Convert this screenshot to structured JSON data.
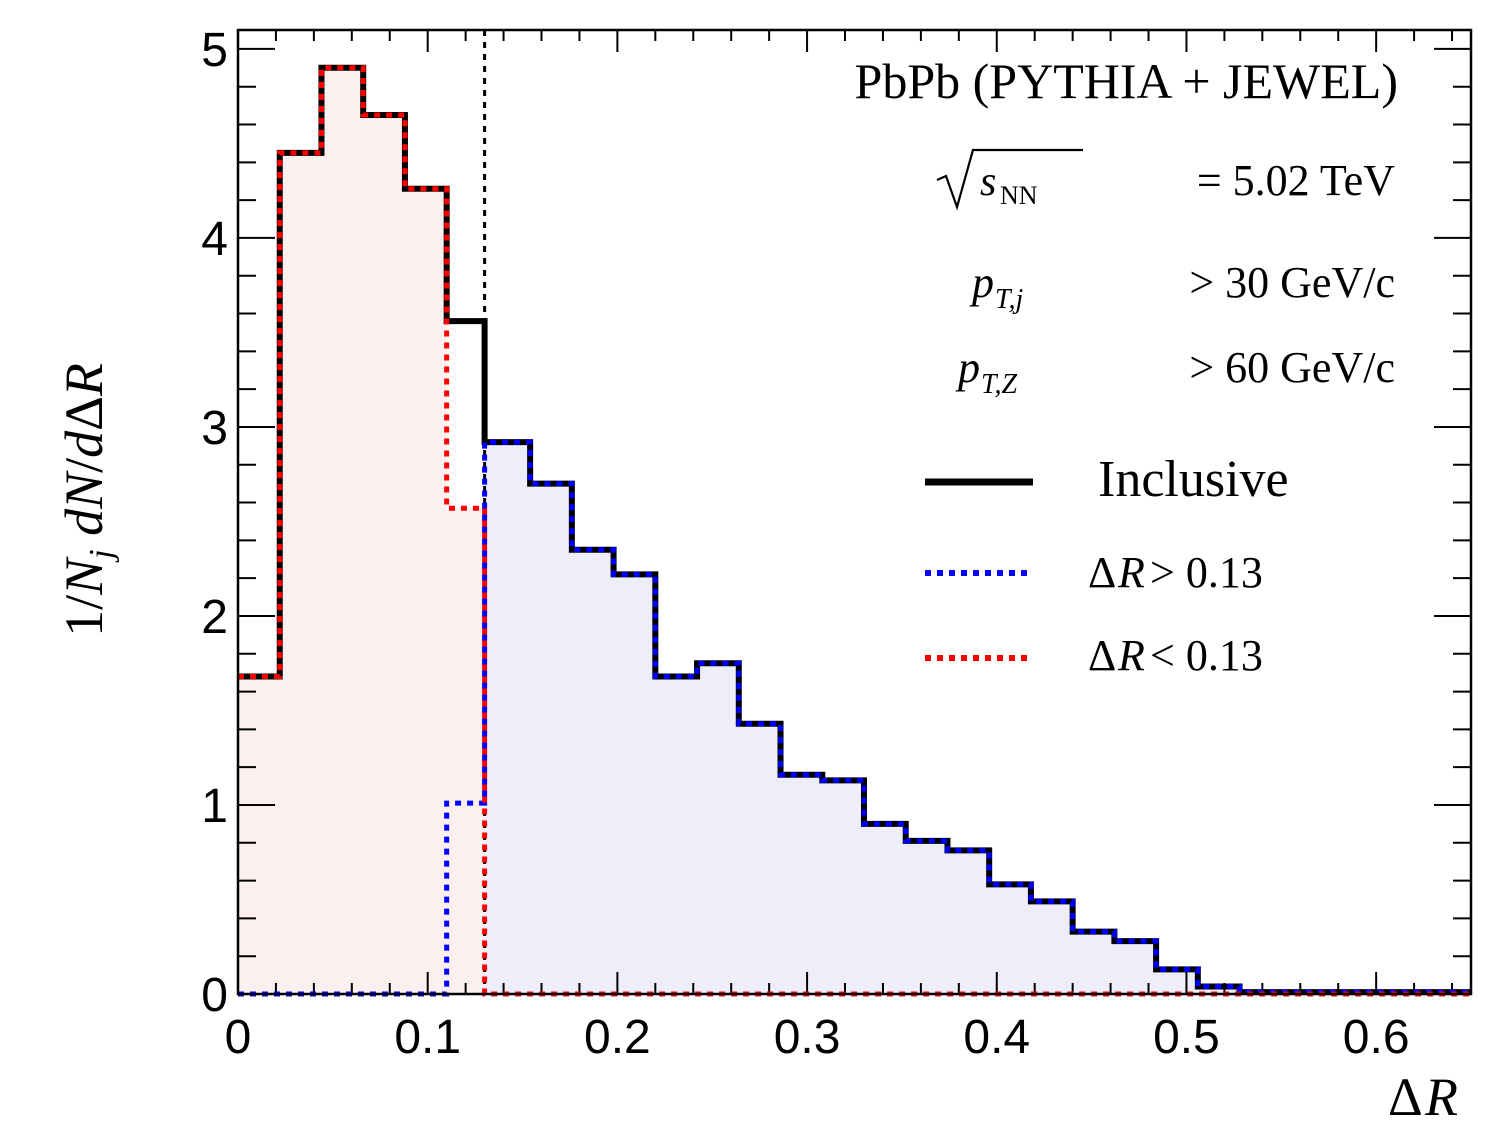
{
  "chart_data": {
    "type": "histogram",
    "title": "PbPb (PYTHIA + JEWEL)",
    "xlabel": "ΔR",
    "ylabel": "1/N_j dN/dΔR",
    "xlim": [
      0,
      0.65
    ],
    "ylim": [
      0,
      5.1
    ],
    "x_ticks": [
      "0",
      "0.1",
      "0.2",
      "0.3",
      "0.4",
      "0.5",
      "0.6"
    ],
    "y_ticks": [
      "0",
      "1",
      "2",
      "3",
      "4",
      "5"
    ],
    "cut_line_x": 0.13,
    "annotations": {
      "energy": "√s_NN = 5.02 TeV",
      "energy_value": "= 5.02 TeV",
      "jet_cut": "p_T,j > 30 GeV/c",
      "jet_cut_value": "> 30 GeV/c",
      "z_cut": "p_T,Z > 60 GeV/c",
      "z_cut_value": "> 60 GeV/c"
    },
    "bin_edges": [
      0,
      0.022,
      0.044,
      0.066,
      0.088,
      0.11,
      0.13,
      0.154,
      0.176,
      0.198,
      0.22,
      0.242,
      0.264,
      0.286,
      0.308,
      0.33,
      0.352,
      0.374,
      0.396,
      0.418,
      0.44,
      0.462,
      0.484,
      0.506,
      0.528,
      0.55,
      0.572,
      0.594,
      0.616,
      0.65
    ],
    "series": [
      {
        "name": "Inclusive",
        "color": "#000000",
        "style": "solid",
        "values": [
          1.68,
          4.45,
          4.9,
          4.65,
          4.26,
          3.56,
          2.92,
          2.7,
          2.35,
          2.22,
          1.68,
          1.75,
          1.43,
          1.16,
          1.13,
          0.9,
          0.81,
          0.76,
          0.58,
          0.49,
          0.33,
          0.28,
          0.13,
          0.04,
          0.01,
          0.01,
          0.01,
          0.01,
          0.01
        ]
      },
      {
        "name": "ΔR > 0.13",
        "legend_value": "> 0.13",
        "color": "#0000ff",
        "fill": "#eeeefb",
        "style": "dotted",
        "values": [
          0,
          0,
          0,
          0,
          0,
          1.01,
          2.92,
          2.7,
          2.35,
          2.22,
          1.68,
          1.75,
          1.43,
          1.16,
          1.13,
          0.9,
          0.81,
          0.76,
          0.58,
          0.49,
          0.33,
          0.28,
          0.13,
          0.04,
          0.01,
          0.01,
          0.01,
          0.01,
          0.01
        ]
      },
      {
        "name": "ΔR < 0.13",
        "legend_value": "< 0.13",
        "color": "#ff0000",
        "fill": "#fcefef",
        "style": "dotted",
        "values": [
          1.68,
          4.45,
          4.9,
          4.65,
          4.26,
          2.57,
          0,
          0,
          0,
          0,
          0,
          0,
          0,
          0,
          0,
          0,
          0,
          0,
          0,
          0,
          0,
          0,
          0,
          0,
          0,
          0,
          0,
          0,
          0
        ]
      }
    ],
    "legend_position": "right"
  }
}
